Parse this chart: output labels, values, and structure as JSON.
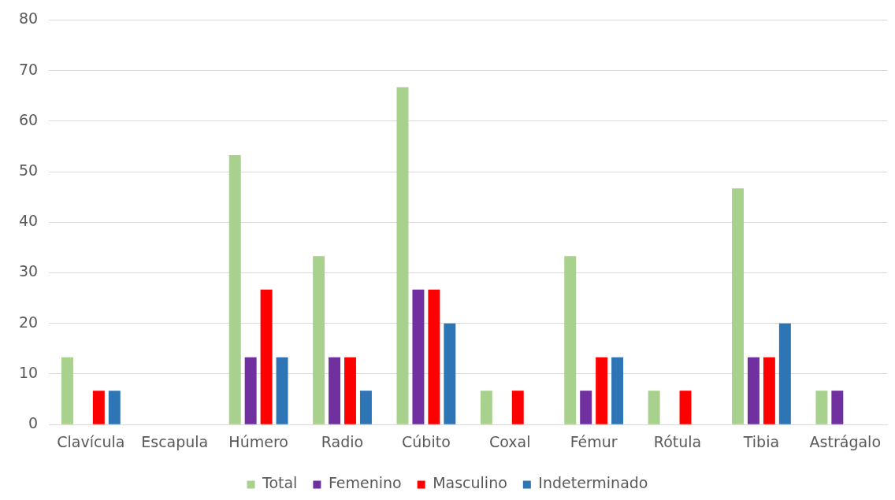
{
  "chart_data": {
    "type": "bar",
    "categories": [
      "Clavícula",
      "Escapula",
      "Húmero",
      "Radio",
      "Cúbito",
      "Coxal",
      "Fémur",
      "Rótula",
      "Tibia",
      "Astrágalo"
    ],
    "series": [
      {
        "name": "Total",
        "color": "#a9d18e",
        "values": [
          13.3,
          0,
          53.3,
          33.3,
          66.7,
          6.7,
          33.3,
          6.7,
          46.7,
          6.7
        ]
      },
      {
        "name": "Femenino",
        "color": "#7030a0",
        "values": [
          0,
          0,
          13.3,
          13.3,
          26.7,
          0,
          6.7,
          0,
          13.3,
          6.7
        ]
      },
      {
        "name": "Masculino",
        "color": "#ff0000",
        "values": [
          6.7,
          0,
          26.7,
          13.3,
          26.7,
          6.7,
          13.3,
          6.7,
          13.3,
          0
        ]
      },
      {
        "name": "Indeterminado",
        "color": "#2e75b6",
        "values": [
          6.7,
          0,
          13.3,
          6.7,
          20,
          0,
          13.3,
          0,
          20,
          0
        ]
      }
    ],
    "ylim": [
      0,
      80
    ],
    "yticks": [
      0,
      10,
      20,
      30,
      40,
      50,
      60,
      70,
      80
    ],
    "grid": "y",
    "legend": "bottom"
  }
}
